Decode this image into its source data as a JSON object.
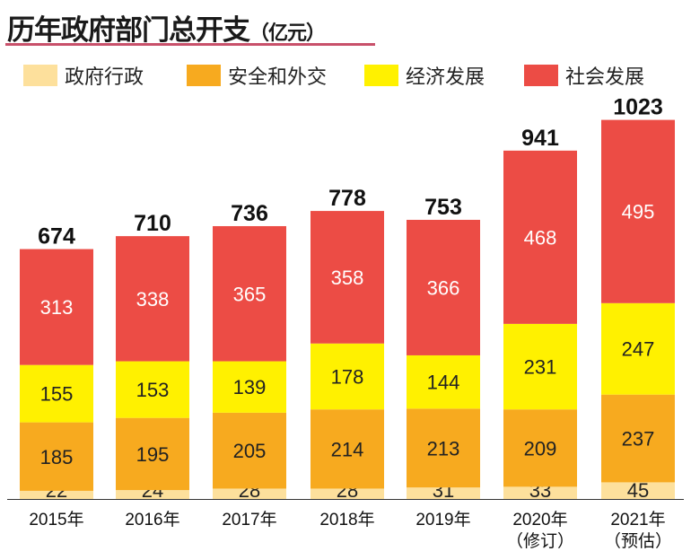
{
  "chart_data": {
    "type": "bar",
    "stacked": true,
    "title": "历年政府部门总开支",
    "unit": "（亿元）",
    "categories": [
      [
        "2015年"
      ],
      [
        "2016年"
      ],
      [
        "2017年"
      ],
      [
        "2018年"
      ],
      [
        "2019年"
      ],
      [
        "2020年",
        "（修订）"
      ],
      [
        "2021年",
        "（预估）"
      ]
    ],
    "series": [
      {
        "name": "政府行政",
        "color": "#fde09c",
        "values": [
          22,
          24,
          28,
          28,
          31,
          33,
          45
        ]
      },
      {
        "name": "安全和外交",
        "color": "#f7aa1f",
        "values": [
          185,
          195,
          205,
          214,
          213,
          209,
          237
        ]
      },
      {
        "name": "经济发展",
        "color": "#fff100",
        "values": [
          155,
          153,
          139,
          178,
          144,
          231,
          247
        ]
      },
      {
        "name": "社会发展",
        "color": "#ec4c45",
        "values": [
          313,
          338,
          365,
          358,
          366,
          468,
          495
        ]
      }
    ],
    "totals": [
      674,
      710,
      736,
      778,
      753,
      941,
      1023
    ],
    "legend_position": "top",
    "grid": false
  }
}
